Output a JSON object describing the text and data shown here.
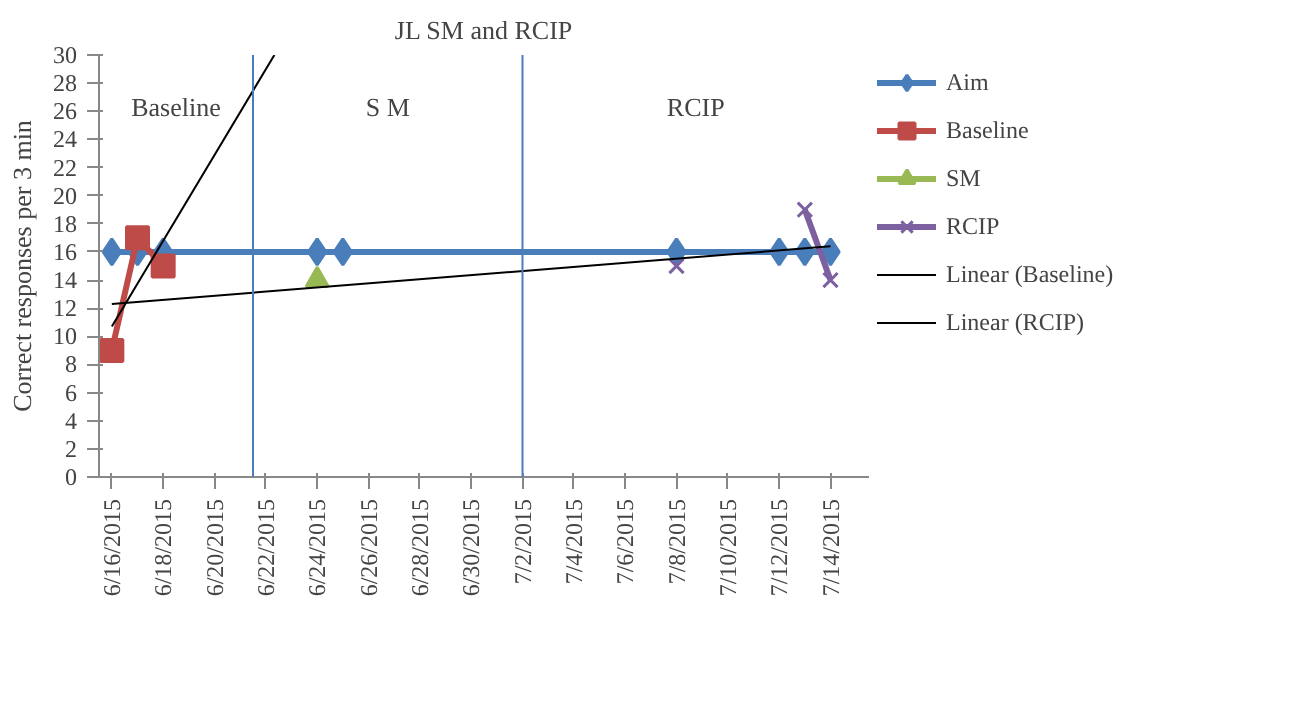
{
  "chart_data": {
    "type": "line",
    "title": "JL SM and RCIP",
    "ylabel": "Correct responses per 3 min",
    "xlim": [
      "2015-06-15T12:00",
      "2015-07-15T12:00"
    ],
    "xticks": [
      {
        "value": "2015-06-16",
        "label": "6/16/2015"
      },
      {
        "value": "2015-06-18",
        "label": "6/18/2015"
      },
      {
        "value": "2015-06-20",
        "label": "6/20/2015"
      },
      {
        "value": "2015-06-22",
        "label": "6/22/2015"
      },
      {
        "value": "2015-06-24",
        "label": "6/24/2015"
      },
      {
        "value": "2015-06-26",
        "label": "6/26/2015"
      },
      {
        "value": "2015-06-28",
        "label": "6/28/2015"
      },
      {
        "value": "2015-06-30",
        "label": "6/30/2015"
      },
      {
        "value": "2015-07-02",
        "label": "7/2/2015"
      },
      {
        "value": "2015-07-04",
        "label": "7/4/2015"
      },
      {
        "value": "2015-07-06",
        "label": "7/6/2015"
      },
      {
        "value": "2015-07-08",
        "label": "7/8/2015"
      },
      {
        "value": "2015-07-10",
        "label": "7/10/2015"
      },
      {
        "value": "2015-07-12",
        "label": "7/12/2015"
      },
      {
        "value": "2015-07-14",
        "label": "7/14/2015"
      }
    ],
    "ylim": [
      0,
      30
    ],
    "yticks": [
      0,
      2,
      4,
      6,
      8,
      10,
      12,
      14,
      16,
      18,
      20,
      22,
      24,
      26,
      28,
      30
    ],
    "grid": false,
    "legend": "right",
    "series": [
      {
        "name": "Aim",
        "color": "#4a7ebb",
        "marker": "diamond",
        "x": [
          "2015-06-16",
          "2015-06-17",
          "2015-06-18",
          "2015-06-24",
          "2015-06-25",
          "2015-07-08",
          "2015-07-12",
          "2015-07-13",
          "2015-07-14"
        ],
        "values": [
          16,
          16,
          16,
          16,
          16,
          16,
          16,
          16,
          16
        ]
      },
      {
        "name": "Baseline",
        "color": "#be4b48",
        "marker": "square",
        "x": [
          "2015-06-16",
          "2015-06-17",
          "2015-06-18"
        ],
        "values": [
          9,
          17,
          15
        ]
      },
      {
        "name": "SM",
        "color": "#98b954",
        "marker": "triangle",
        "x": [
          "2015-06-24"
        ],
        "values": [
          14
        ]
      },
      {
        "name": "RCIP",
        "color": "#7d60a0",
        "marker": "cross",
        "x": [
          "2015-07-08",
          "2015-07-12",
          "2015-07-13",
          "2015-07-14"
        ],
        "values": [
          15,
          null,
          19,
          14
        ]
      },
      {
        "name": "Linear (Baseline)",
        "color": "#000000",
        "marker": "none",
        "x": [
          "2015-06-16",
          "2015-06-22T08:00"
        ],
        "values": [
          10.7,
          30
        ]
      },
      {
        "name": "Linear (RCIP)",
        "color": "#000000",
        "marker": "none",
        "x": [
          "2015-06-16",
          "2015-07-14"
        ],
        "values": [
          12.3,
          16.4
        ]
      }
    ],
    "ref_lines": [
      {
        "axis": "x",
        "value": "2015-06-21T12:00",
        "color": "#4a7ebb"
      },
      {
        "axis": "x",
        "value": "2015-07-02",
        "color": "#4a7ebb"
      }
    ],
    "annotations": [
      "Baseline",
      "S M",
      "RCIP"
    ]
  }
}
